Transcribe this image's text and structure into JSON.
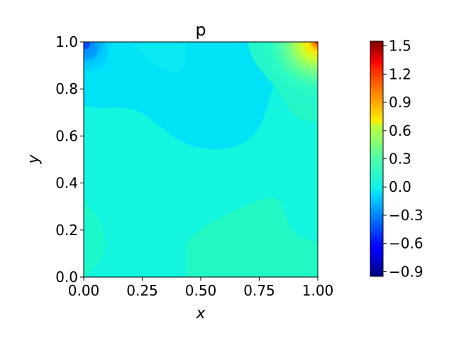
{
  "chart_data": {
    "type": "heatmap",
    "title": "p",
    "xlabel": "x",
    "ylabel": "y",
    "xlim": [
      0.0,
      1.0
    ],
    "ylim": [
      0.0,
      1.0
    ],
    "x_ticks": [
      "0.00",
      "0.25",
      "0.50",
      "0.75",
      "1.00"
    ],
    "y_ticks": [
      "0.0",
      "0.2",
      "0.4",
      "0.6",
      "0.8",
      "1.0"
    ],
    "colormap": "jet",
    "colorbar": {
      "range": [
        -0.95,
        1.55
      ],
      "ticks": [
        -0.9,
        -0.6,
        -0.3,
        0.0,
        0.3,
        0.6,
        0.9,
        1.2,
        1.5
      ],
      "tick_labels": [
        "−0.9",
        "−0.6",
        "−0.3",
        "0.0",
        "0.3",
        "0.6",
        "0.9",
        "1.2",
        "1.5"
      ]
    },
    "regions": [
      {
        "name": "background",
        "value": 0.02
      },
      {
        "name": "upper-left low-pressure zone",
        "value": -0.12
      },
      {
        "name": "top-left corner minimum",
        "value": -0.85
      },
      {
        "name": "top-right corner maximum",
        "value": 1.55
      },
      {
        "name": "bottom-right elevated zone",
        "value": 0.1
      },
      {
        "name": "bottom-left elevated zone",
        "value": 0.08
      }
    ]
  }
}
